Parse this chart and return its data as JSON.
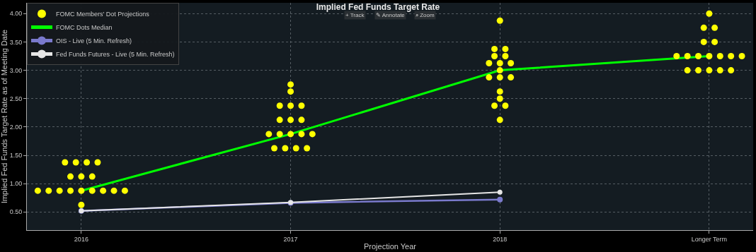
{
  "chart_data": {
    "type": "scatter",
    "title": "Implied Fed Funds Target Rate",
    "xlabel": "Projection Year",
    "ylabel": "Implied Fed Funds Target Rate as of Meeting Date",
    "annotations": [
      "+ Track",
      "✎ Annotate",
      "⌕ Zoom"
    ],
    "xlim": [
      2015.74,
      2019.21
    ],
    "xticks": [
      2016,
      2017,
      2018,
      {
        "value": 2019,
        "label": "Longer Term"
      }
    ],
    "ylim": [
      0.18,
      4.19
    ],
    "yticks": [
      {
        "value": 0.5,
        "label": "0.50"
      },
      {
        "value": 1.0,
        "label": "1.00"
      },
      {
        "value": 1.5,
        "label": "1.50"
      },
      {
        "value": 2.0,
        "label": "2.00"
      },
      {
        "value": 2.5,
        "label": "2.50"
      },
      {
        "value": 3.0,
        "label": "3.00"
      },
      {
        "value": 3.5,
        "label": "3.50"
      },
      {
        "value": 4.0,
        "label": "4.00"
      }
    ],
    "grid": true,
    "legend": "top left",
    "series": [
      {
        "name": "FOMC Members' Dot Projections",
        "marker": "circle",
        "color": "#ffff00",
        "x": [
          2016,
          2015.792,
          2015.844,
          2015.896,
          2015.948,
          2016,
          2016.052,
          2016.104,
          2016.156,
          2016.208,
          2015.948,
          2016,
          2016.052,
          2015.922,
          2015.974,
          2016.026,
          2016.078,
          2017,
          2017,
          2016.948,
          2017,
          2017.052,
          2016.948,
          2017,
          2017.052,
          2016.896,
          2016.948,
          2017,
          2017.052,
          2017.104,
          2016.922,
          2016.974,
          2017.026,
          2017.078,
          2018,
          2017.974,
          2018.026,
          2017.974,
          2018.026,
          2017.948,
          2018,
          2018.052,
          2018,
          2017.948,
          2018,
          2018.052,
          2018,
          2018,
          2017.974,
          2018.026,
          2018,
          2019,
          2018.974,
          2019.026,
          2018.974,
          2019.026,
          2018.844,
          2018.896,
          2018.948,
          2019,
          2019.052,
          2019.104,
          2019.156,
          2018.896,
          2018.948,
          2019,
          2019.052,
          2019.104
        ],
        "values": [
          0.625,
          0.875,
          0.875,
          0.875,
          0.875,
          0.875,
          0.875,
          0.875,
          0.875,
          0.875,
          1.125,
          1.125,
          1.125,
          1.375,
          1.375,
          1.375,
          1.375,
          2.75,
          2.625,
          2.375,
          2.375,
          2.375,
          2.125,
          2.125,
          2.125,
          1.875,
          1.875,
          1.875,
          1.875,
          1.875,
          1.625,
          1.625,
          1.625,
          1.625,
          3.875,
          3.375,
          3.375,
          3.25,
          3.25,
          3.125,
          3.125,
          3.125,
          3.0,
          2.875,
          2.875,
          2.875,
          2.625,
          2.5,
          2.375,
          2.375,
          2.125,
          4.0,
          3.75,
          3.75,
          3.5,
          3.5,
          3.25,
          3.25,
          3.25,
          3.25,
          3.25,
          3.25,
          3.25,
          3.0,
          3.0,
          3.0,
          3.0,
          3.0
        ]
      },
      {
        "name": "FOMC Dots Median",
        "type": "line",
        "marker": "none",
        "line_style": "solid",
        "color": "#00ff00",
        "x": [
          2016,
          2017,
          2018,
          2019
        ],
        "values": [
          0.875,
          1.875,
          3.0,
          3.25
        ]
      },
      {
        "name": "OIS - Live (5 Min. Refresh)",
        "type": "line",
        "marker": "circle",
        "line_style": "solid",
        "color": "#7a7acc",
        "x": [
          2016,
          2017,
          2018
        ],
        "values": [
          0.52,
          0.66,
          0.72
        ]
      },
      {
        "name": "Fed Funds Futures - Live (5 Min. Refresh)",
        "type": "line",
        "marker": "circle",
        "line_style": "solid",
        "color": "#e6e6e6",
        "x": [
          2016,
          2017,
          2018
        ],
        "values": [
          0.52,
          0.67,
          0.85
        ]
      }
    ]
  }
}
